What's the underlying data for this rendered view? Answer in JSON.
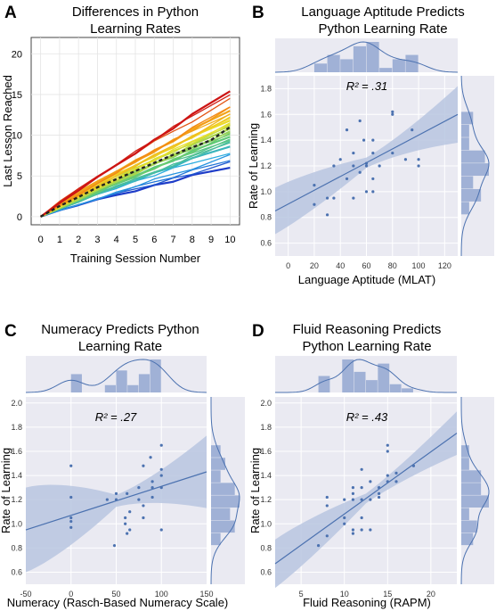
{
  "colors": {
    "point": "#4c72b0",
    "band": "#b9c6e0",
    "panel_bg": "#eaeaf2",
    "hist": "#8da3ce",
    "grid": "#ffffff",
    "mean_line": "#222222"
  },
  "chart_data": [
    {
      "panel": "A",
      "type": "line",
      "title": "Differences in Python Learning Rates",
      "title_lines": [
        "Differences in Python",
        "Learning Rates"
      ],
      "xlabel": "Training Session Number",
      "ylabel": "Last Lesson Reached",
      "x": [
        0,
        1,
        2,
        3,
        4,
        5,
        6,
        7,
        8,
        10
      ],
      "x_ticks": [
        "0",
        "1",
        "2",
        "3",
        "4",
        "5",
        "6",
        "7",
        "8",
        "9",
        "10"
      ],
      "y_ticks": [
        "0",
        "5",
        "10",
        "15",
        "20"
      ],
      "xlim": [
        -0.5,
        10.5
      ],
      "ylim": [
        -1,
        22
      ],
      "grid": true,
      "final_values": [
        15.4,
        15.2,
        14.4,
        13.6,
        13.2,
        13.0,
        12.8,
        12.5,
        12.2,
        12.0,
        11.8,
        11.6,
        11.4,
        11.2,
        11.0,
        10.8,
        10.6,
        10.4,
        10.2,
        10.0,
        9.8,
        9.6,
        9.4,
        9.2,
        9.0,
        8.6,
        8.0,
        7.5,
        7.0,
        6.5,
        6.0
      ],
      "mean_line": {
        "x": [
          0,
          1,
          2,
          3,
          4,
          5,
          6,
          7,
          8,
          9,
          10
        ],
        "y": [
          0,
          1.3,
          2.4,
          3.6,
          4.6,
          5.6,
          6.6,
          7.6,
          8.5,
          9.4,
          11.0
        ]
      }
    },
    {
      "panel": "B",
      "type": "scatter",
      "title": "Language Aptitude Predicts Python Learning Rate",
      "title_lines": [
        "Language Aptitude Predicts",
        "Python Learning Rate"
      ],
      "xlabel": "Language Aptitude (MLAT)",
      "ylabel": "Rate of Learning",
      "annotation": "R² = .31",
      "x_ticks": [
        "0",
        "20",
        "40",
        "60",
        "80",
        "100",
        "120"
      ],
      "y_ticks": [
        "0.6",
        "0.8",
        "1.0",
        "1.2",
        "1.4",
        "1.6",
        "1.8"
      ],
      "xlim": [
        -10,
        130
      ],
      "ylim": [
        0.5,
        1.9
      ],
      "points": [
        [
          20,
          1.05
        ],
        [
          20,
          0.9
        ],
        [
          30,
          0.82
        ],
        [
          30,
          0.95
        ],
        [
          35,
          1.2
        ],
        [
          35,
          0.95
        ],
        [
          40,
          1.25
        ],
        [
          45,
          1.48
        ],
        [
          45,
          1.1
        ],
        [
          50,
          1.2
        ],
        [
          50,
          0.95
        ],
        [
          50,
          1.3
        ],
        [
          55,
          1.55
        ],
        [
          55,
          1.15
        ],
        [
          58,
          1.4
        ],
        [
          60,
          1.22
        ],
        [
          60,
          1.2
        ],
        [
          60,
          1.0
        ],
        [
          65,
          1.4
        ],
        [
          65,
          1.3
        ],
        [
          65,
          1.1
        ],
        [
          65,
          1.0
        ],
        [
          70,
          1.2
        ],
        [
          80,
          1.62
        ],
        [
          80,
          1.6
        ],
        [
          80,
          1.3
        ],
        [
          90,
          1.25
        ],
        [
          95,
          1.48
        ],
        [
          100,
          1.25
        ],
        [
          100,
          1.2
        ]
      ],
      "fit": {
        "x": [
          -10,
          130
        ],
        "y": [
          0.85,
          1.6
        ]
      },
      "band_width": [
        0.18,
        0.04,
        0.22
      ]
    },
    {
      "panel": "C",
      "type": "scatter",
      "title": "Numeracy Predicts Python Learning Rate",
      "title_lines": [
        "Numeracy Predicts Python",
        "Learning Rate"
      ],
      "xlabel": "Numeracy (Rasch-Based Numeracy Scale)",
      "ylabel": "Rate of Learning",
      "annotation": "R² = .27",
      "x_ticks": [
        "-50",
        "0",
        "50",
        "100",
        "150"
      ],
      "y_ticks": [
        "0.6",
        "0.8",
        "1.0",
        "1.2",
        "1.4",
        "1.6",
        "1.8",
        "2.0"
      ],
      "xlim": [
        -50,
        150
      ],
      "ylim": [
        0.5,
        2.05
      ],
      "points": [
        [
          0,
          1.48
        ],
        [
          0,
          1.22
        ],
        [
          0,
          1.05
        ],
        [
          0,
          1.02
        ],
        [
          0,
          0.97
        ],
        [
          40,
          1.2
        ],
        [
          48,
          0.82
        ],
        [
          50,
          1.25
        ],
        [
          50,
          1.2
        ],
        [
          60,
          1.05
        ],
        [
          60,
          1.0
        ],
        [
          62,
          1.25
        ],
        [
          62,
          0.92
        ],
        [
          65,
          1.1
        ],
        [
          65,
          0.95
        ],
        [
          75,
          1.3
        ],
        [
          75,
          1.2
        ],
        [
          80,
          1.48
        ],
        [
          80,
          1.15
        ],
        [
          80,
          1.05
        ],
        [
          88,
          1.55
        ],
        [
          90,
          1.35
        ],
        [
          90,
          1.3
        ],
        [
          90,
          1.22
        ],
        [
          100,
          1.65
        ],
        [
          100,
          1.45
        ],
        [
          100,
          1.4
        ],
        [
          100,
          1.3
        ],
        [
          100,
          0.95
        ]
      ],
      "fit": {
        "x": [
          -50,
          150
        ],
        "y": [
          0.95,
          1.43
        ]
      },
      "band_width": [
        0.35,
        0.05,
        0.3
      ]
    },
    {
      "panel": "D",
      "type": "scatter",
      "title": "Fluid Reasoning Predicts Python Learning Rate",
      "title_lines": [
        "Fluid Reasoning Predicts",
        "Python Learning Rate"
      ],
      "xlabel": "Fluid Reasoning (RAPM)",
      "ylabel": "Rate of Learning",
      "annotation": "R² = .43",
      "x_ticks": [
        "5",
        "10",
        "15",
        "20"
      ],
      "y_ticks": [
        "0.6",
        "0.8",
        "1.0",
        "1.2",
        "1.4",
        "1.6",
        "1.8",
        "2.0"
      ],
      "xlim": [
        2,
        23
      ],
      "ylim": [
        0.5,
        2.05
      ],
      "points": [
        [
          7,
          0.82
        ],
        [
          8,
          1.22
        ],
        [
          8,
          1.15
        ],
        [
          8,
          0.9
        ],
        [
          10,
          1.2
        ],
        [
          10,
          1.05
        ],
        [
          10,
          1.0
        ],
        [
          11,
          1.3
        ],
        [
          11,
          1.25
        ],
        [
          11,
          1.2
        ],
        [
          11,
          0.95
        ],
        [
          11,
          0.92
        ],
        [
          12,
          1.45
        ],
        [
          12,
          1.3
        ],
        [
          12,
          1.2
        ],
        [
          12,
          1.05
        ],
        [
          12,
          0.95
        ],
        [
          13,
          1.35
        ],
        [
          13,
          1.2
        ],
        [
          13,
          0.95
        ],
        [
          14,
          1.3
        ],
        [
          14,
          1.25
        ],
        [
          14,
          1.22
        ],
        [
          15,
          1.65
        ],
        [
          15,
          1.6
        ],
        [
          15,
          1.4
        ],
        [
          15,
          1.35
        ],
        [
          16,
          1.42
        ],
        [
          16,
          1.35
        ],
        [
          18,
          1.48
        ]
      ],
      "fit": {
        "x": [
          2,
          23
        ],
        "y": [
          0.67,
          1.75
        ]
      },
      "band_width": [
        0.2,
        0.04,
        0.18
      ]
    }
  ]
}
